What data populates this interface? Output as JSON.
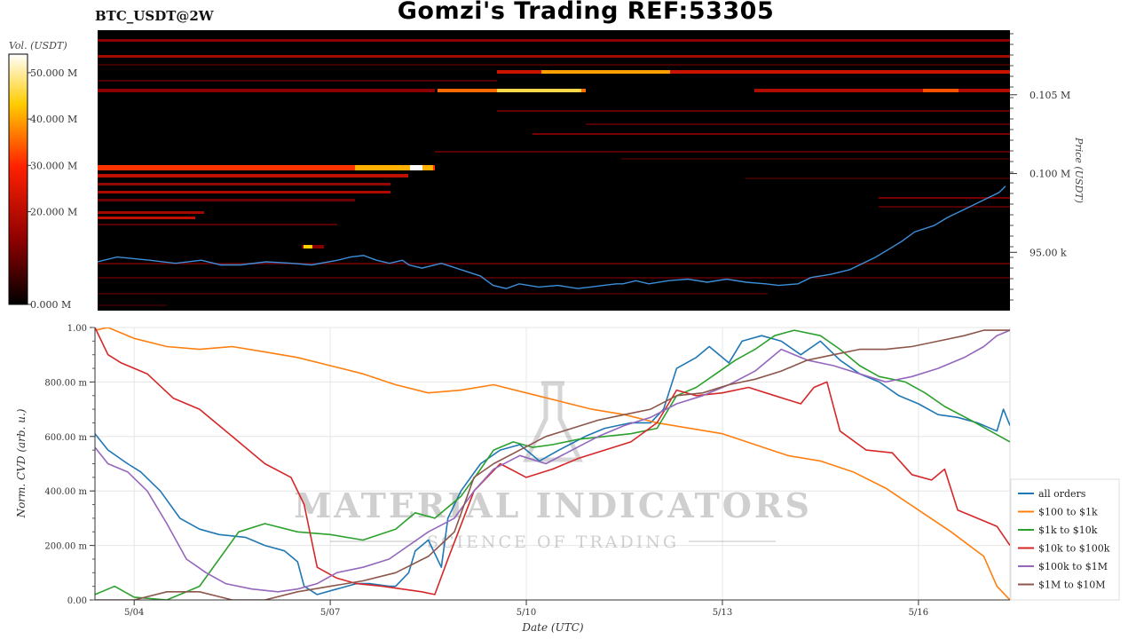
{
  "header": {
    "pair": "BTC_USDT@2W",
    "title": "Gomzi's Trading REF:53305"
  },
  "heatmap": {
    "colorbar_label": "Vol. (USDT)",
    "colorbar_ticks": [
      "0.000 M",
      "20.000 M",
      "30.000 M",
      "40.000 M",
      "50.000 M"
    ],
    "colorbar_tick_values": [
      0,
      20,
      30,
      40,
      50
    ],
    "colorbar_range": [
      0,
      54
    ],
    "price_axis_label": "Price (USDT)",
    "price_ticks": [
      "95.00 k",
      "0.100 M",
      "0.105 M"
    ],
    "price_tick_values": [
      95000,
      100000,
      105000
    ],
    "price_range": [
      91300,
      109100
    ],
    "colors": [
      "#000000",
      "#8b0000",
      "#ff2000",
      "#ffcc00",
      "#ffffff"
    ]
  },
  "watermark": {
    "brand": "MATERIAL INDICATORS",
    "tagline": "SCIENCE OF TRADING"
  },
  "chart_data": [
    {
      "type": "heatmap",
      "title": "BTC_USDT@2W",
      "ylabel": "Price (USDT)",
      "colorbar_label": "Vol. (USDT)",
      "ylim": [
        91300,
        109100
      ],
      "x_range": [
        "5/03",
        "5/17"
      ],
      "price_series": {
        "name": "price",
        "x": [
          0,
          0.3,
          0.8,
          1.2,
          1.6,
          1.9,
          2.2,
          2.6,
          3.0,
          3.3,
          3.7,
          3.9,
          4.1,
          4.3,
          4.5,
          4.7,
          4.8,
          5.0,
          5.3,
          5.6,
          5.9,
          6.1,
          6.3,
          6.5,
          6.8,
          7.1,
          7.4,
          7.6,
          7.8,
          8.0,
          8.1,
          8.3,
          8.5,
          8.8,
          9.1,
          9.4,
          9.7,
          10.0,
          10.3,
          10.5,
          10.8,
          11.0,
          11.3,
          11.6,
          11.8,
          12.0,
          12.2,
          12.4,
          12.6,
          12.9,
          13.1,
          13.3,
          13.5,
          13.7,
          13.9,
          14.0
        ],
        "y": [
          94400,
          94700,
          94500,
          94300,
          94500,
          94200,
          94200,
          94400,
          94300,
          94200,
          94500,
          94700,
          94800,
          94500,
          94300,
          94500,
          94200,
          94000,
          94300,
          93900,
          93500,
          92900,
          92700,
          93000,
          92800,
          92900,
          92700,
          92800,
          92900,
          93000,
          93000,
          93200,
          93000,
          93200,
          93300,
          93100,
          93300,
          93100,
          93000,
          92900,
          93000,
          93400,
          93600,
          93900,
          94300,
          94700,
          95200,
          95700,
          96300,
          96700,
          97200,
          97600,
          98000,
          98400,
          98800,
          99200
        ]
      }
    },
    {
      "type": "line",
      "xlabel": "Date (UTC)",
      "ylabel": "Norm. CVD (arb. u.)",
      "ylim": [
        0,
        1
      ],
      "xlim": [
        3.4,
        17.4
      ],
      "x_ticks": [
        4,
        7,
        10,
        13,
        16
      ],
      "x_tick_labels": [
        "5/04",
        "5/07",
        "5/10",
        "5/13",
        "5/16"
      ],
      "y_ticks": [
        0,
        0.2,
        0.4,
        0.6,
        0.8,
        1.0
      ],
      "y_tick_labels": [
        "0.00",
        "200.00 m",
        "400.00 m",
        "600.00 m",
        "800.00 m",
        "1.00"
      ],
      "legend_position": "right",
      "series": [
        {
          "name": "all orders",
          "color": "#1f77b4",
          "x": [
            3.4,
            3.6,
            3.9,
            4.1,
            4.4,
            4.7,
            5.0,
            5.3,
            5.7,
            6.0,
            6.3,
            6.5,
            6.6,
            6.8,
            7.1,
            7.4,
            7.6,
            7.9,
            8.0,
            8.2,
            8.3,
            8.5,
            8.7,
            8.8,
            9.0,
            9.3,
            9.6,
            9.9,
            10.2,
            10.5,
            10.9,
            11.2,
            11.6,
            11.9,
            12.1,
            12.3,
            12.6,
            12.8,
            13.1,
            13.3,
            13.6,
            13.9,
            14.2,
            14.5,
            14.8,
            15.1,
            15.4,
            15.7,
            16.0,
            16.3,
            16.6,
            16.9,
            17.2,
            17.3,
            17.4
          ],
          "y": [
            0.61,
            0.55,
            0.5,
            0.47,
            0.4,
            0.3,
            0.26,
            0.24,
            0.23,
            0.2,
            0.18,
            0.14,
            0.05,
            0.02,
            0.04,
            0.06,
            0.06,
            0.05,
            0.05,
            0.1,
            0.18,
            0.22,
            0.12,
            0.3,
            0.4,
            0.5,
            0.55,
            0.57,
            0.51,
            0.55,
            0.6,
            0.63,
            0.65,
            0.65,
            0.7,
            0.85,
            0.89,
            0.93,
            0.87,
            0.95,
            0.97,
            0.95,
            0.9,
            0.95,
            0.88,
            0.83,
            0.8,
            0.75,
            0.72,
            0.68,
            0.67,
            0.65,
            0.62,
            0.7,
            0.64
          ]
        },
        {
          "name": "$100 to $1k",
          "color": "#ff7f0e",
          "x": [
            3.4,
            3.6,
            4.0,
            4.5,
            5.0,
            5.5,
            6.0,
            6.5,
            7.0,
            7.5,
            8.0,
            8.5,
            9.0,
            9.5,
            10.0,
            10.5,
            11.0,
            11.5,
            12.0,
            12.5,
            13.0,
            13.5,
            14.0,
            14.5,
            15.0,
            15.5,
            16.0,
            16.5,
            17.0,
            17.2,
            17.4
          ],
          "y": [
            0.99,
            1.0,
            0.96,
            0.93,
            0.92,
            0.93,
            0.91,
            0.89,
            0.86,
            0.83,
            0.79,
            0.76,
            0.77,
            0.79,
            0.76,
            0.73,
            0.7,
            0.68,
            0.65,
            0.63,
            0.61,
            0.57,
            0.53,
            0.51,
            0.47,
            0.41,
            0.33,
            0.25,
            0.16,
            0.05,
            0.0
          ]
        },
        {
          "name": "$1k to $10k",
          "color": "#2ca02c",
          "x": [
            3.4,
            3.7,
            4.0,
            4.5,
            5.0,
            5.3,
            5.6,
            6.0,
            6.5,
            7.0,
            7.5,
            8.0,
            8.3,
            8.6,
            9.0,
            9.3,
            9.5,
            9.8,
            10.1,
            10.4,
            10.8,
            11.2,
            11.6,
            12.0,
            12.3,
            12.6,
            12.9,
            13.2,
            13.5,
            13.8,
            14.1,
            14.5,
            14.8,
            15.1,
            15.4,
            15.8,
            16.1,
            16.4,
            16.8,
            17.1,
            17.4
          ],
          "y": [
            0.02,
            0.05,
            0.01,
            0.0,
            0.05,
            0.15,
            0.25,
            0.28,
            0.25,
            0.24,
            0.22,
            0.26,
            0.32,
            0.3,
            0.38,
            0.48,
            0.55,
            0.58,
            0.56,
            0.57,
            0.59,
            0.6,
            0.61,
            0.63,
            0.75,
            0.78,
            0.83,
            0.88,
            0.92,
            0.97,
            0.99,
            0.97,
            0.92,
            0.86,
            0.82,
            0.8,
            0.76,
            0.71,
            0.66,
            0.62,
            0.58
          ]
        },
        {
          "name": "$10k to $100k",
          "color": "#d62728",
          "x": [
            3.4,
            3.6,
            3.8,
            4.2,
            4.6,
            5.0,
            5.5,
            6.0,
            6.4,
            6.6,
            6.8,
            7.1,
            7.4,
            7.8,
            8.1,
            8.4,
            8.6,
            8.8,
            9.2,
            9.6,
            10.0,
            10.4,
            10.8,
            11.2,
            11.6,
            12.0,
            12.3,
            12.6,
            13.0,
            13.4,
            13.8,
            14.2,
            14.4,
            14.6,
            14.8,
            15.2,
            15.6,
            15.9,
            16.2,
            16.4,
            16.6,
            16.9,
            17.2,
            17.4
          ],
          "y": [
            1.0,
            0.9,
            0.87,
            0.83,
            0.74,
            0.7,
            0.6,
            0.5,
            0.45,
            0.35,
            0.12,
            0.08,
            0.06,
            0.05,
            0.04,
            0.03,
            0.02,
            0.15,
            0.4,
            0.5,
            0.45,
            0.48,
            0.52,
            0.55,
            0.58,
            0.65,
            0.77,
            0.75,
            0.76,
            0.78,
            0.75,
            0.72,
            0.78,
            0.8,
            0.62,
            0.55,
            0.54,
            0.46,
            0.44,
            0.48,
            0.33,
            0.3,
            0.27,
            0.2
          ]
        },
        {
          "name": "$100k to $1M",
          "color": "#9467bd",
          "x": [
            3.4,
            3.6,
            3.9,
            4.2,
            4.5,
            4.8,
            5.1,
            5.4,
            5.8,
            6.2,
            6.5,
            6.8,
            7.1,
            7.5,
            7.9,
            8.2,
            8.5,
            8.9,
            9.2,
            9.5,
            9.9,
            10.3,
            10.7,
            11.1,
            11.5,
            11.9,
            12.3,
            12.7,
            13.1,
            13.5,
            13.9,
            14.3,
            14.7,
            15.1,
            15.5,
            15.9,
            16.3,
            16.7,
            17.0,
            17.2,
            17.4
          ],
          "y": [
            0.56,
            0.5,
            0.47,
            0.4,
            0.28,
            0.15,
            0.1,
            0.06,
            0.04,
            0.03,
            0.04,
            0.06,
            0.1,
            0.12,
            0.15,
            0.2,
            0.25,
            0.3,
            0.4,
            0.48,
            0.53,
            0.5,
            0.55,
            0.6,
            0.64,
            0.67,
            0.72,
            0.75,
            0.79,
            0.84,
            0.92,
            0.88,
            0.86,
            0.83,
            0.8,
            0.82,
            0.85,
            0.89,
            0.93,
            0.97,
            0.99
          ]
        },
        {
          "name": "$1M to $10M",
          "color": "#8c564b",
          "x": [
            3.4,
            4.0,
            4.5,
            5.0,
            5.5,
            6.0,
            6.5,
            7.0,
            7.5,
            8.0,
            8.5,
            8.9,
            9.2,
            9.5,
            9.9,
            10.3,
            10.7,
            11.1,
            11.5,
            11.9,
            12.3,
            12.7,
            13.1,
            13.5,
            13.9,
            14.3,
            14.7,
            15.1,
            15.5,
            15.9,
            16.3,
            16.7,
            17.0,
            17.4
          ],
          "y": [
            0.0,
            0.0,
            0.03,
            0.03,
            0.0,
            0.0,
            0.03,
            0.05,
            0.07,
            0.1,
            0.16,
            0.25,
            0.45,
            0.5,
            0.55,
            0.6,
            0.63,
            0.66,
            0.68,
            0.7,
            0.75,
            0.76,
            0.79,
            0.81,
            0.84,
            0.88,
            0.9,
            0.92,
            0.92,
            0.93,
            0.95,
            0.97,
            0.99,
            0.99
          ]
        }
      ]
    }
  ]
}
